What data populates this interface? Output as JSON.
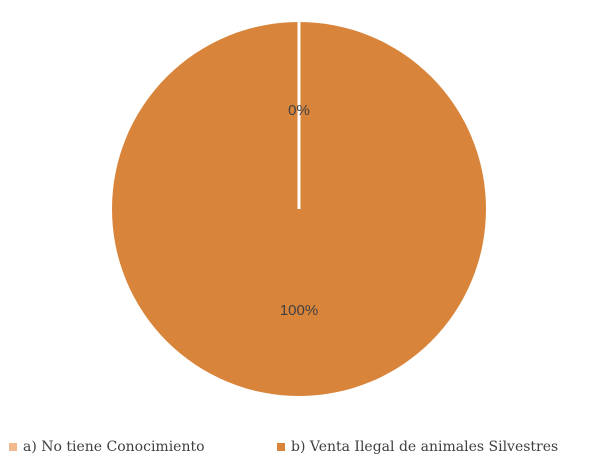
{
  "chart_data": {
    "type": "pie",
    "categories": [
      "a) No tiene Conocimiento",
      "b) Venta Ilegal de animales Silvestres"
    ],
    "values": [
      0,
      100
    ],
    "data_labels": [
      "0%",
      "100%"
    ],
    "colors": [
      "#f2b98e",
      "#d9843b"
    ],
    "legend_placement": "bottom"
  }
}
